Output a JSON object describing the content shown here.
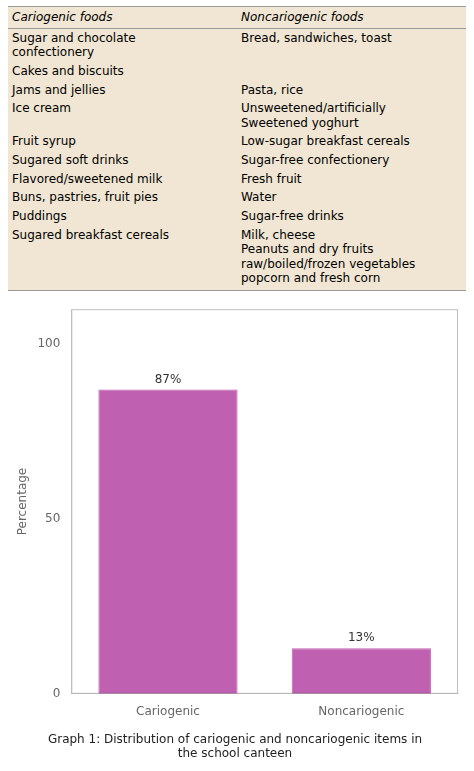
{
  "chart_data": {
    "type": "bar",
    "title": "Graph 1: Distribution of cariogenic and noncariogenic items in\nthe school canteen",
    "categories": [
      "Cariogenic",
      "Noncariogenic"
    ],
    "values": [
      87,
      13
    ],
    "value_labels": [
      "87%",
      "13%"
    ],
    "data_labels": true,
    "color": "#c060b0",
    "ylabel": "Percentage",
    "ylim": [
      0,
      110
    ],
    "yticks": [
      0,
      50,
      100
    ],
    "grid": false,
    "table": {
      "columns": [
        "Cariogenic foods",
        "Noncariogenic foods"
      ],
      "rows": [
        [
          [
            "Sugar and chocolate",
            "confectionery"
          ],
          [
            "Bread, sandwiches, toast"
          ]
        ],
        [
          [
            "Cakes and biscuits"
          ],
          []
        ],
        [
          [
            "Jams and jellies"
          ],
          [
            "Pasta, rice"
          ]
        ],
        [
          [
            "Ice cream"
          ],
          [
            "Unsweetened/artificially",
            "Sweetened yoghurt"
          ]
        ],
        [
          [
            "Fruit syrup"
          ],
          [
            "Low-sugar breakfast cereals"
          ]
        ],
        [
          [
            "Sugared soft drinks"
          ],
          [
            "Sugar-free confectionery"
          ]
        ],
        [
          [
            "Flavored/sweetened milk"
          ],
          [
            "Fresh fruit"
          ]
        ],
        [
          [
            "Buns, pastries, fruit pies"
          ],
          [
            "Water"
          ]
        ],
        [
          [
            "Puddings"
          ],
          [
            "Sugar-free drinks"
          ]
        ],
        [
          [
            "Sugared breakfast cereals"
          ],
          [
            "Milk, cheese",
            "Peanuts and dry fruits",
            "raw/boiled/frozen vegetables",
            "popcorn and fresh corn"
          ]
        ]
      ]
    }
  }
}
